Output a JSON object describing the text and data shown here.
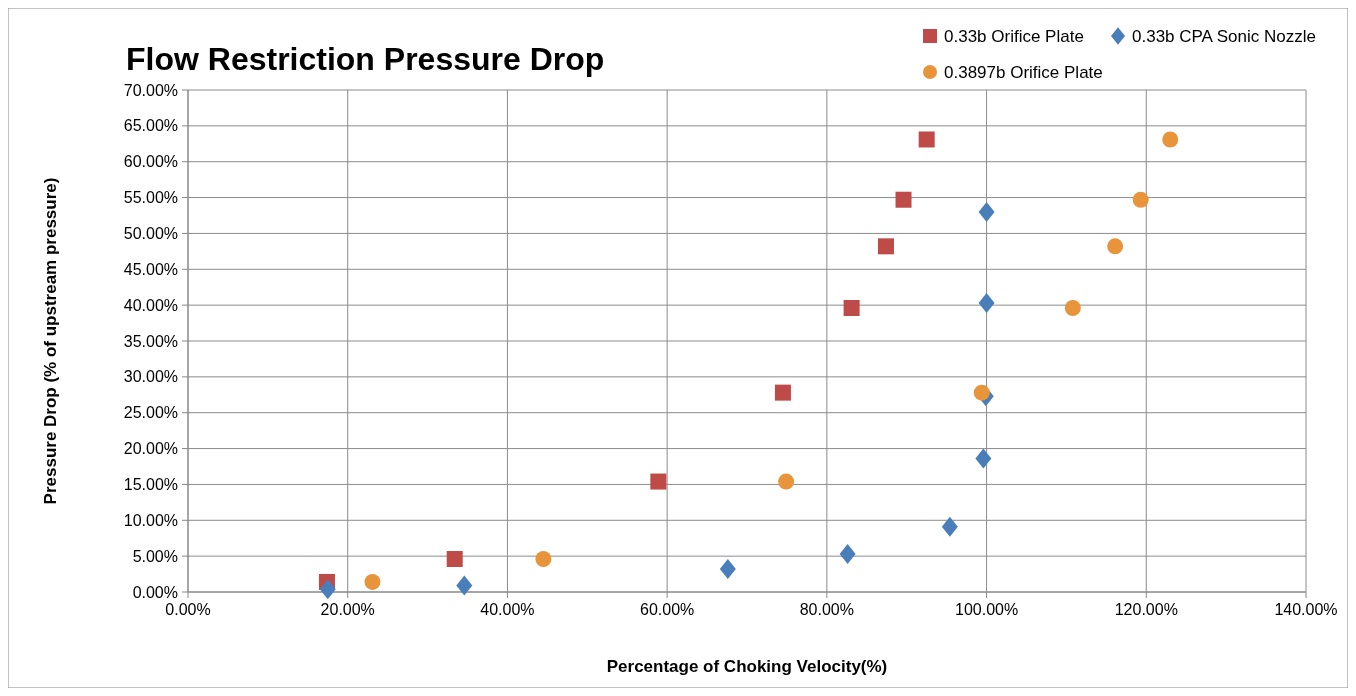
{
  "chart_data": {
    "type": "scatter",
    "title": "Flow Restriction Pressure Drop",
    "xlabel": "Percentage of Choking Velocity(%)",
    "ylabel": "Pressure  Drop  (% of upstream pressure)",
    "xlim": [
      0,
      140
    ],
    "ylim": [
      0,
      70
    ],
    "xticks": [
      {
        "value": 0,
        "label": "0.00%"
      },
      {
        "value": 20,
        "label": "20.00%"
      },
      {
        "value": 40,
        "label": "40.00%"
      },
      {
        "value": 60,
        "label": "60.00%"
      },
      {
        "value": 80,
        "label": "80.00%"
      },
      {
        "value": 100,
        "label": "100.00%"
      },
      {
        "value": 120,
        "label": "120.00%"
      },
      {
        "value": 140,
        "label": "140.00%"
      }
    ],
    "yticks": [
      {
        "value": 0,
        "label": "0.00%"
      },
      {
        "value": 5,
        "label": "5.00%"
      },
      {
        "value": 10,
        "label": "10.00%"
      },
      {
        "value": 15,
        "label": "15.00%"
      },
      {
        "value": 20,
        "label": "20.00%"
      },
      {
        "value": 25,
        "label": "25.00%"
      },
      {
        "value": 30,
        "label": "30.00%"
      },
      {
        "value": 35,
        "label": "35.00%"
      },
      {
        "value": 40,
        "label": "40.00%"
      },
      {
        "value": 45,
        "label": "45.00%"
      },
      {
        "value": 50,
        "label": "50.00%"
      },
      {
        "value": 55,
        "label": "55.00%"
      },
      {
        "value": 60,
        "label": "60.00%"
      },
      {
        "value": 65,
        "label": "65.00%"
      },
      {
        "value": 70,
        "label": "70.00%"
      }
    ],
    "grid": true,
    "legend": "top right",
    "series": [
      {
        "name": "0.33b Orifice Plate",
        "color": "#be4b48",
        "marker": "square",
        "x": [
          17.4,
          33.4,
          58.9,
          74.5,
          83.1,
          87.4,
          89.6,
          92.5
        ],
        "values": [
          1.4,
          4.6,
          15.4,
          27.8,
          39.6,
          48.2,
          54.7,
          63.1
        ]
      },
      {
        "name": "0.33b CPA Sonic Nozzle",
        "color": "#4a7ebb",
        "marker": "diamond",
        "x": [
          17.5,
          34.6,
          67.6,
          82.6,
          95.4,
          99.6,
          99.9,
          100,
          100
        ],
        "values": [
          0.4,
          0.9,
          3.2,
          5.3,
          9.1,
          18.6,
          27.3,
          40.3,
          53
        ]
      },
      {
        "name": "0.3897b Orifice Plate",
        "color": "#e8943a",
        "marker": "circle",
        "x": [
          23.1,
          44.5,
          74.9,
          99.4,
          110.8,
          116.1,
          119.3,
          123
        ],
        "values": [
          1.4,
          4.6,
          15.4,
          27.8,
          39.6,
          48.2,
          54.7,
          63.1
        ]
      }
    ]
  }
}
